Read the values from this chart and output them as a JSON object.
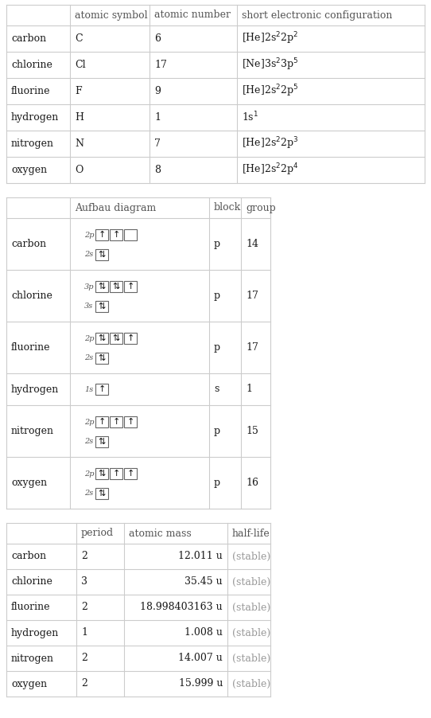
{
  "table1": {
    "headers": [
      "",
      "atomic symbol",
      "atomic number",
      "short electronic configuration"
    ],
    "rows": [
      [
        "carbon",
        "C",
        "6",
        "[He]2s$^2$2p$^2$"
      ],
      [
        "chlorine",
        "Cl",
        "17",
        "[Ne]3s$^2$3p$^5$"
      ],
      [
        "fluorine",
        "F",
        "9",
        "[He]2s$^2$2p$^5$"
      ],
      [
        "hydrogen",
        "H",
        "1",
        "1s$^1$"
      ],
      [
        "nitrogen",
        "N",
        "7",
        "[He]2s$^2$2p$^3$"
      ],
      [
        "oxygen",
        "O",
        "8",
        "[He]2s$^2$2p$^4$"
      ]
    ]
  },
  "table2": {
    "headers": [
      "",
      "Aufbau diagram",
      "block",
      "group"
    ],
    "rows": [
      [
        "carbon",
        "p",
        "14"
      ],
      [
        "chlorine",
        "p",
        "17"
      ],
      [
        "fluorine",
        "p",
        "17"
      ],
      [
        "hydrogen",
        "s",
        "1"
      ],
      [
        "nitrogen",
        "p",
        "15"
      ],
      [
        "oxygen",
        "p",
        "16"
      ]
    ]
  },
  "table3": {
    "headers": [
      "",
      "period",
      "atomic mass",
      "half-life"
    ],
    "rows": [
      [
        "carbon",
        "2",
        "12.011 u",
        "(stable)"
      ],
      [
        "chlorine",
        "3",
        "35.45 u",
        "(stable)"
      ],
      [
        "fluorine",
        "2",
        "18.998403163 u",
        "(stable)"
      ],
      [
        "hydrogen",
        "1",
        "1.008 u",
        "(stable)"
      ],
      [
        "nitrogen",
        "2",
        "14.007 u",
        "(stable)"
      ],
      [
        "oxygen",
        "2",
        "15.999 u",
        "(stable)"
      ]
    ]
  },
  "bg_color": "#ffffff",
  "line_color": "#cccccc",
  "text_color": "#1a1a1a",
  "header_color": "#555555",
  "stable_color": "#999999",
  "font_size": 9.0,
  "header_font_size": 9.0
}
